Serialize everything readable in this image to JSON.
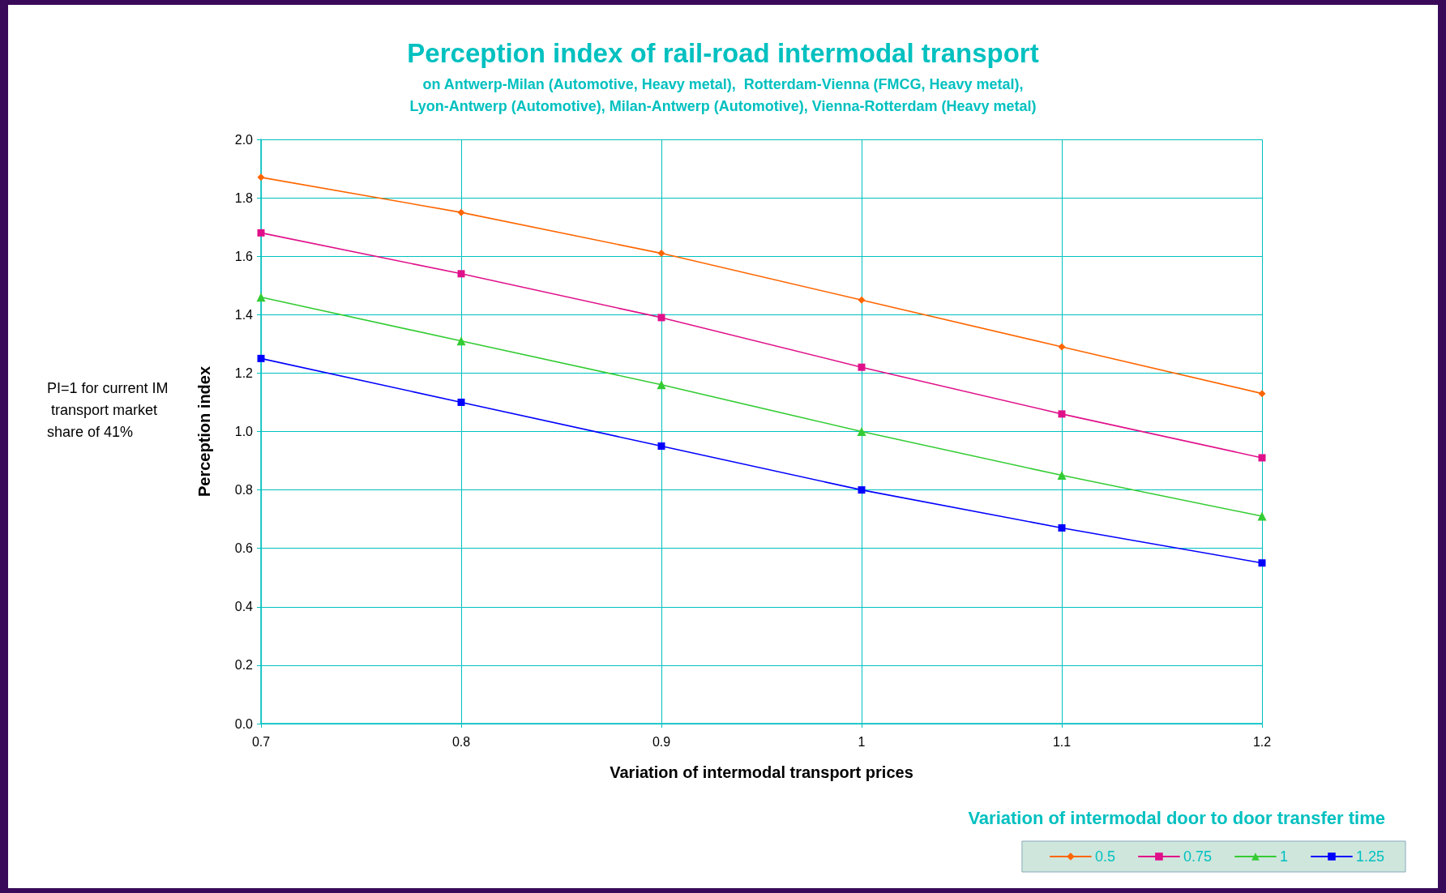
{
  "chart_data": {
    "type": "line",
    "title": "Perception index of rail-road intermodal transport",
    "subtitle": "on Antwerp-Milan (Automotive, Heavy metal),  Rotterdam-Vienna (FMCG, Heavy metal),\nLyon-Antwerp (Automotive), Milan-Antwerp (Automotive), Vienna-Rotterdam (Heavy metal)",
    "xlabel": "Variation of intermodal transport prices",
    "ylabel": "Perception index",
    "legend_title": "Variation of intermodal door to door transfer time",
    "annotations": [
      "PI=1 for current IM transport market share of 41%"
    ],
    "x": [
      0.7,
      0.8,
      0.9,
      1,
      1.1,
      1.2
    ],
    "series": [
      {
        "name": "0.5",
        "color": "#ff6600",
        "marker": "diamond",
        "values": [
          1.87,
          1.75,
          1.61,
          1.45,
          1.29,
          1.13
        ]
      },
      {
        "name": "0.75",
        "color": "#e0108a",
        "marker": "square",
        "values": [
          1.68,
          1.54,
          1.39,
          1.22,
          1.06,
          0.91
        ]
      },
      {
        "name": "1",
        "color": "#33cc33",
        "marker": "triangle",
        "values": [
          1.46,
          1.31,
          1.16,
          1.0,
          0.85,
          0.71
        ]
      },
      {
        "name": "1.25",
        "color": "#0000ff",
        "marker": "square",
        "values": [
          1.25,
          1.1,
          0.95,
          0.8,
          0.67,
          0.55
        ]
      }
    ],
    "xlim": [
      0.7,
      1.2
    ],
    "xticks": [
      0.7,
      0.8,
      0.9,
      1,
      1.1,
      1.2
    ],
    "ylim": [
      0,
      2
    ],
    "yticks": [
      {
        "value": 0,
        "label": "0.0"
      },
      {
        "value": 0.2,
        "label": "0.2"
      },
      {
        "value": 0.4,
        "label": "0.4"
      },
      {
        "value": 0.6,
        "label": "0.6"
      },
      {
        "value": 0.8,
        "label": "0.8"
      },
      {
        "value": 1,
        "label": "1.0"
      },
      {
        "value": 1.2,
        "label": "1.2"
      },
      {
        "value": 1.4,
        "label": "1.4"
      },
      {
        "value": 1.6,
        "label": "1.6"
      },
      {
        "value": 1.8,
        "label": "1.8"
      },
      {
        "value": 2,
        "label": "2.0"
      }
    ],
    "grid": true,
    "legend": "bottom right",
    "line_style": "solid"
  }
}
